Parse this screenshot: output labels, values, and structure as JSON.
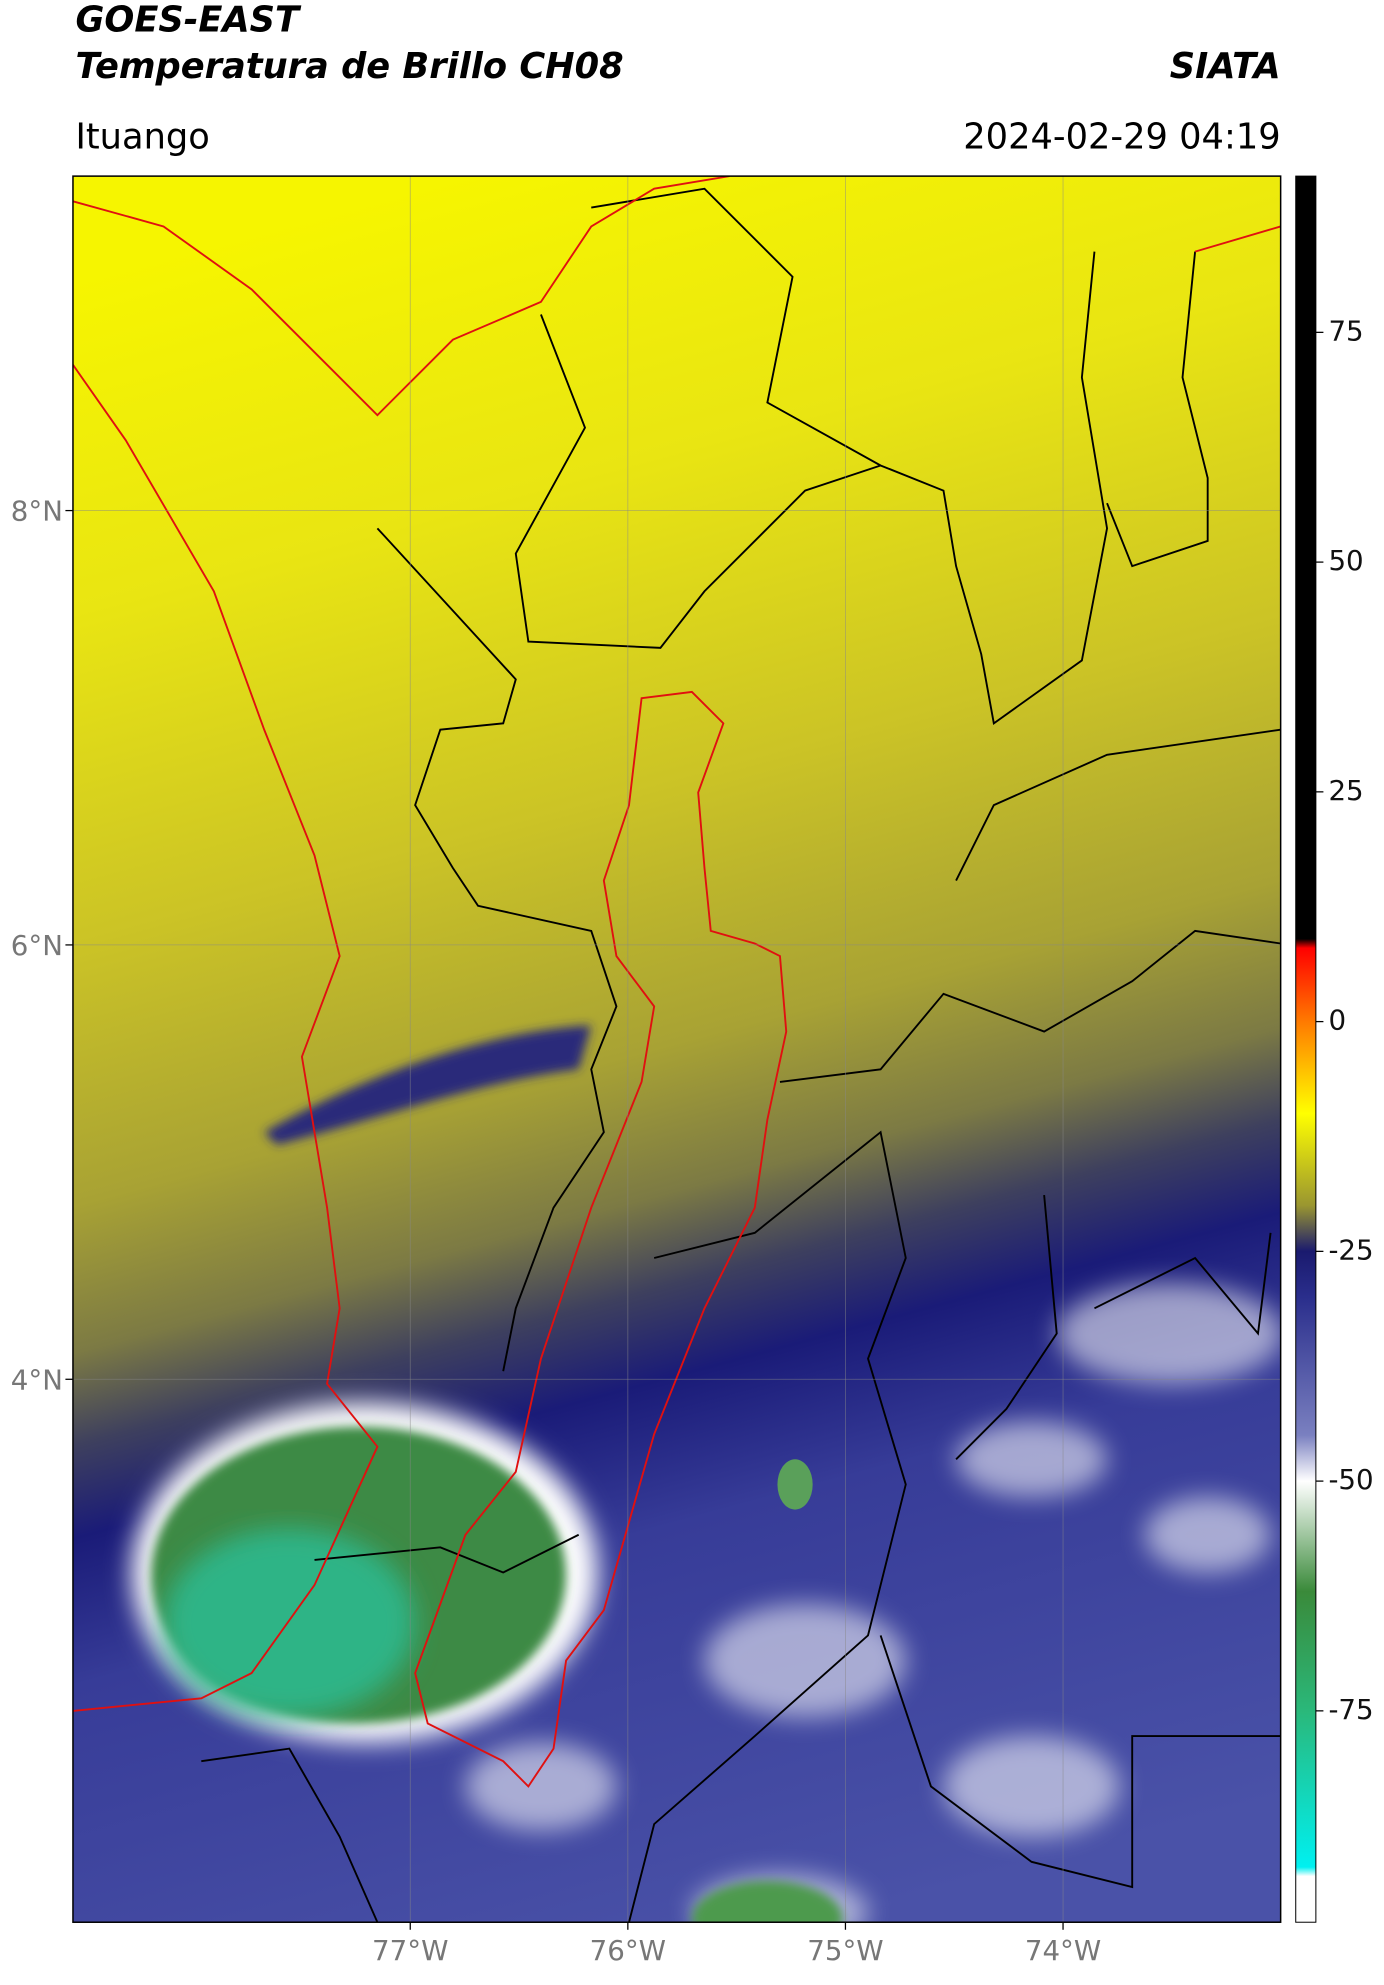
{
  "header": {
    "title": "GOES-EAST",
    "subtitle": "Temperatura de Brillo CH08",
    "source": "SIATA",
    "location": "Ituango",
    "datetime": "2024-02-29 04:19"
  },
  "map": {
    "type": "map",
    "xlim": [
      -78.55,
      -73.0
    ],
    "ylim": [
      1.5,
      9.54
    ],
    "xticks": [
      {
        "value": -77,
        "label": "77°W"
      },
      {
        "value": -76,
        "label": "76°W"
      },
      {
        "value": -75,
        "label": "75°W"
      },
      {
        "value": -74,
        "label": "74°W"
      }
    ],
    "yticks": [
      {
        "value": 8,
        "label": "8°N"
      },
      {
        "value": 6,
        "label": "6°N"
      },
      {
        "value": 4,
        "label": "4°N"
      }
    ],
    "grid": true
  },
  "colorbar": {
    "lim": [
      -98,
      92
    ],
    "ticks": [
      75,
      50,
      25,
      0,
      -25,
      -50,
      -75
    ],
    "colors": [
      {
        "value": 92,
        "color": "#000000"
      },
      {
        "value": 9,
        "color": "#000000"
      },
      {
        "value": 8,
        "color": "#ff0000"
      },
      {
        "value": 0,
        "color": "#ff7a00"
      },
      {
        "value": -10,
        "color": "#ffff00"
      },
      {
        "value": -20,
        "color": "#9a9630"
      },
      {
        "value": -25,
        "color": "#1a1a6e"
      },
      {
        "value": -30,
        "color": "#2a2e8c"
      },
      {
        "value": -45,
        "color": "#7a80c0"
      },
      {
        "value": -50,
        "color": "#ffffff"
      },
      {
        "value": -62,
        "color": "#3a8a3a"
      },
      {
        "value": -75,
        "color": "#2ab87a"
      },
      {
        "value": -92,
        "color": "#00f0f0"
      },
      {
        "value": -93,
        "color": "#ffffff"
      },
      {
        "value": -98,
        "color": "#ffffff"
      }
    ]
  }
}
